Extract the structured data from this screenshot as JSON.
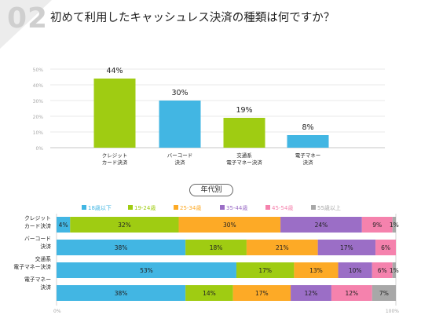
{
  "header": {
    "question_number": "02",
    "question": "初めて利用したキャッシュレス決済の種類は何ですか？"
  },
  "breakdown_label": "年代別",
  "colors": {
    "green": "#9fcc12",
    "blue": "#42b6e3",
    "orange": "#fdaa26",
    "purple": "#9b6ec6",
    "pink": "#f582ad",
    "gray": "#a8a8a8",
    "diag": "#ececec"
  },
  "chart_data": [
    {
      "type": "bar",
      "title": "",
      "categories": [
        "クレジット\nカード決済",
        "バーコード\n決済",
        "交通系\n電子マネー決済",
        "電子マネー\n決済"
      ],
      "values": [
        44,
        30,
        19,
        8
      ],
      "value_labels": [
        "44%",
        "30%",
        "19%",
        "8%"
      ],
      "bar_colors": [
        "#9fcc12",
        "#42b6e3",
        "#9fcc12",
        "#42b6e3"
      ],
      "ylim": [
        0,
        50
      ],
      "yticks": [
        "0%",
        "10%",
        "20%",
        "30%",
        "40%",
        "50%"
      ],
      "grid": true
    },
    {
      "type": "bar",
      "orientation": "horizontal-stacked",
      "title": "",
      "categories": [
        "クレジット\nカード決済",
        "バーコード\n決済",
        "交通系\n電子マネー決済",
        "電子マネー\n決済"
      ],
      "series": [
        {
          "name": "18歳以下",
          "color": "#42b6e3",
          "values": [
            4,
            38,
            53,
            38
          ],
          "labels": [
            "4%",
            "38%",
            "53%",
            "38%"
          ]
        },
        {
          "name": "19-24歳",
          "color": "#9fcc12",
          "values": [
            32,
            18,
            17,
            14
          ],
          "labels": [
            "32%",
            "18%",
            "17%",
            "14%"
          ]
        },
        {
          "name": "25-34歳",
          "color": "#fdaa26",
          "values": [
            30,
            21,
            13,
            17
          ],
          "labels": [
            "30%",
            "21%",
            "13%",
            "17%"
          ]
        },
        {
          "name": "35-44歳",
          "color": "#9b6ec6",
          "values": [
            24,
            17,
            10,
            12
          ],
          "labels": [
            "24%",
            "17%",
            "10%",
            "12%"
          ]
        },
        {
          "name": "45-54歳",
          "color": "#f582ad",
          "values": [
            9,
            6,
            6,
            12
          ],
          "labels": [
            "9%",
            "6%",
            "6%",
            "12%"
          ]
        },
        {
          "name": "55歳以上",
          "color": "#a8a8a8",
          "values": [
            1,
            0,
            1,
            7
          ],
          "labels": [
            "1%",
            "",
            "1%",
            "7%"
          ]
        }
      ],
      "xlim": [
        0,
        100
      ],
      "xticks": [
        "0%",
        "100%"
      ],
      "legend": "top"
    }
  ]
}
